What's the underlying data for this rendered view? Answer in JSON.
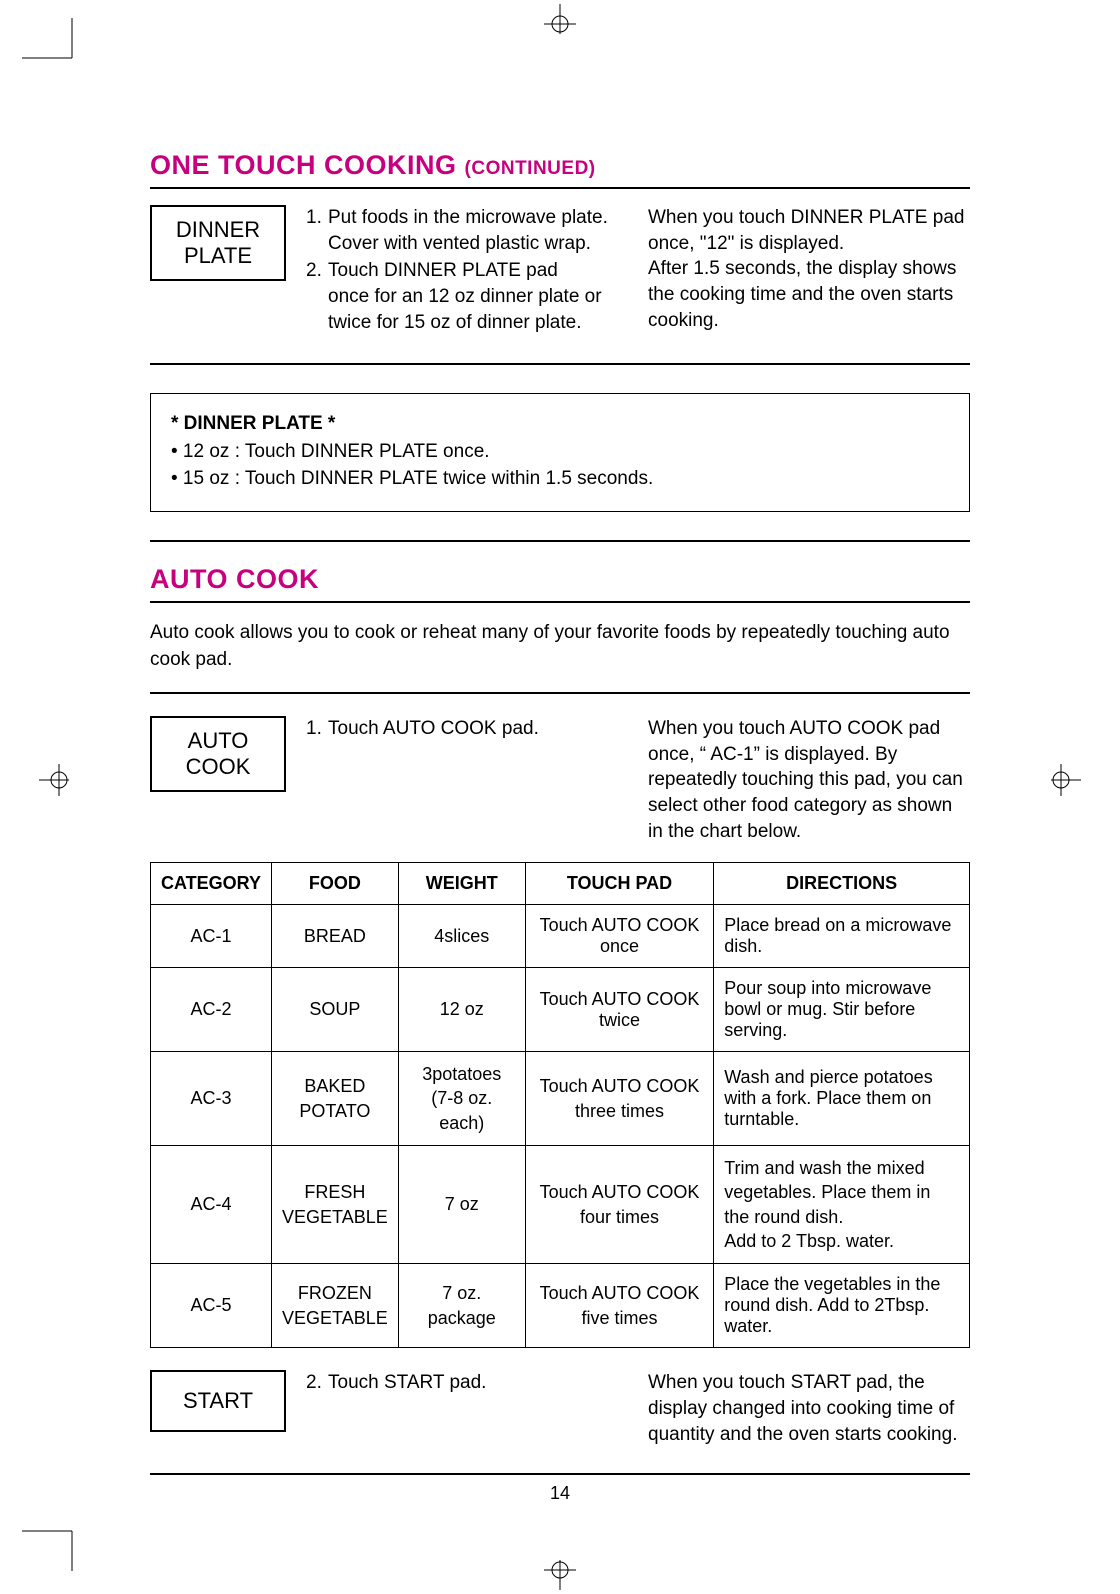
{
  "accent_color": "#c6007e",
  "page_number": "14",
  "heading1": {
    "main": "ONE TOUCH COOKING ",
    "sub": "(CONTINUED)"
  },
  "dinner_plate": {
    "pad_label_l1": "DINNER",
    "pad_label_l2": "PLATE",
    "step1_num": "1.",
    "step1_a": "Put foods in the microwave plate.",
    "step1_b": "Cover with vented plastic wrap.",
    "step2_num": "2.",
    "step2_a": "Touch DINNER PLATE pad",
    "step2_b": "once for an 12 oz dinner plate or",
    "step2_c": "twice for 15 oz of dinner plate.",
    "right_a": "When you touch DINNER PLATE pad once, \"12\" is displayed.",
    "right_b": "After 1.5 seconds, the display shows the cooking time and the oven starts cooking."
  },
  "note": {
    "title": "* DINNER PLATE *",
    "line1": "• 12 oz : Touch DINNER PLATE once.",
    "line2": "• 15 oz : Touch DINNER PLATE twice within 1.5 seconds."
  },
  "heading2": "AUTO COOK",
  "auto_intro": "Auto cook allows you to cook or reheat many of your favorite foods by repeatedly touching auto cook pad.",
  "auto_cook": {
    "pad_label_l1": "AUTO",
    "pad_label_l2": "COOK",
    "step1_num": "1.",
    "step1_text": "Touch AUTO COOK pad.",
    "right_text": "When you touch AUTO COOK pad once, “ AC-1” is displayed. By repeatedly touching this pad, you can select other food category as shown in the chart below."
  },
  "table": {
    "headers": {
      "category": "CATEGORY",
      "food": "FOOD",
      "weight": "WEIGHT",
      "touch_pad": "TOUCH PAD",
      "directions": "DIRECTIONS"
    },
    "col_widths": {
      "category": "118px",
      "food": "122px",
      "weight": "128px",
      "touch_pad": "192px",
      "directions": "260px"
    },
    "rows": [
      {
        "category": "AC-1",
        "food": "BREAD",
        "weight": "4slices",
        "touch_pad": "Touch AUTO COOK once",
        "directions": "Place bread on a microwave dish."
      },
      {
        "category": "AC-2",
        "food": "SOUP",
        "weight": "12 oz",
        "touch_pad": "Touch AUTO COOK twice",
        "directions": "Pour soup into microwave bowl or mug. Stir before serving."
      },
      {
        "category": "AC-3",
        "food": "BAKED\nPOTATO",
        "weight": "3potatoes\n(7-8 oz. each)",
        "touch_pad": "Touch AUTO COOK\nthree times",
        "directions": "Wash and pierce potatoes with a fork.  Place them on turntable."
      },
      {
        "category": "AC-4",
        "food": "FRESH\nVEGETABLE",
        "weight": "7 oz",
        "touch_pad": "Touch AUTO COOK\nfour times",
        "directions": "Trim and wash the mixed vegetables. Place them in the round dish.\nAdd to 2 Tbsp. water."
      },
      {
        "category": "AC-5",
        "food": "FROZEN\nVEGETABLE",
        "weight": "7 oz.\npackage",
        "touch_pad": "Touch AUTO COOK\nfive times",
        "directions": "Place the vegetables in the round dish. Add to 2Tbsp. water."
      }
    ]
  },
  "start": {
    "pad_label": "START",
    "step2_num": "2.",
    "step2_text": "Touch START pad.",
    "right_text": "When you touch START pad, the display changed into cooking time of quantity and the oven starts cooking."
  }
}
